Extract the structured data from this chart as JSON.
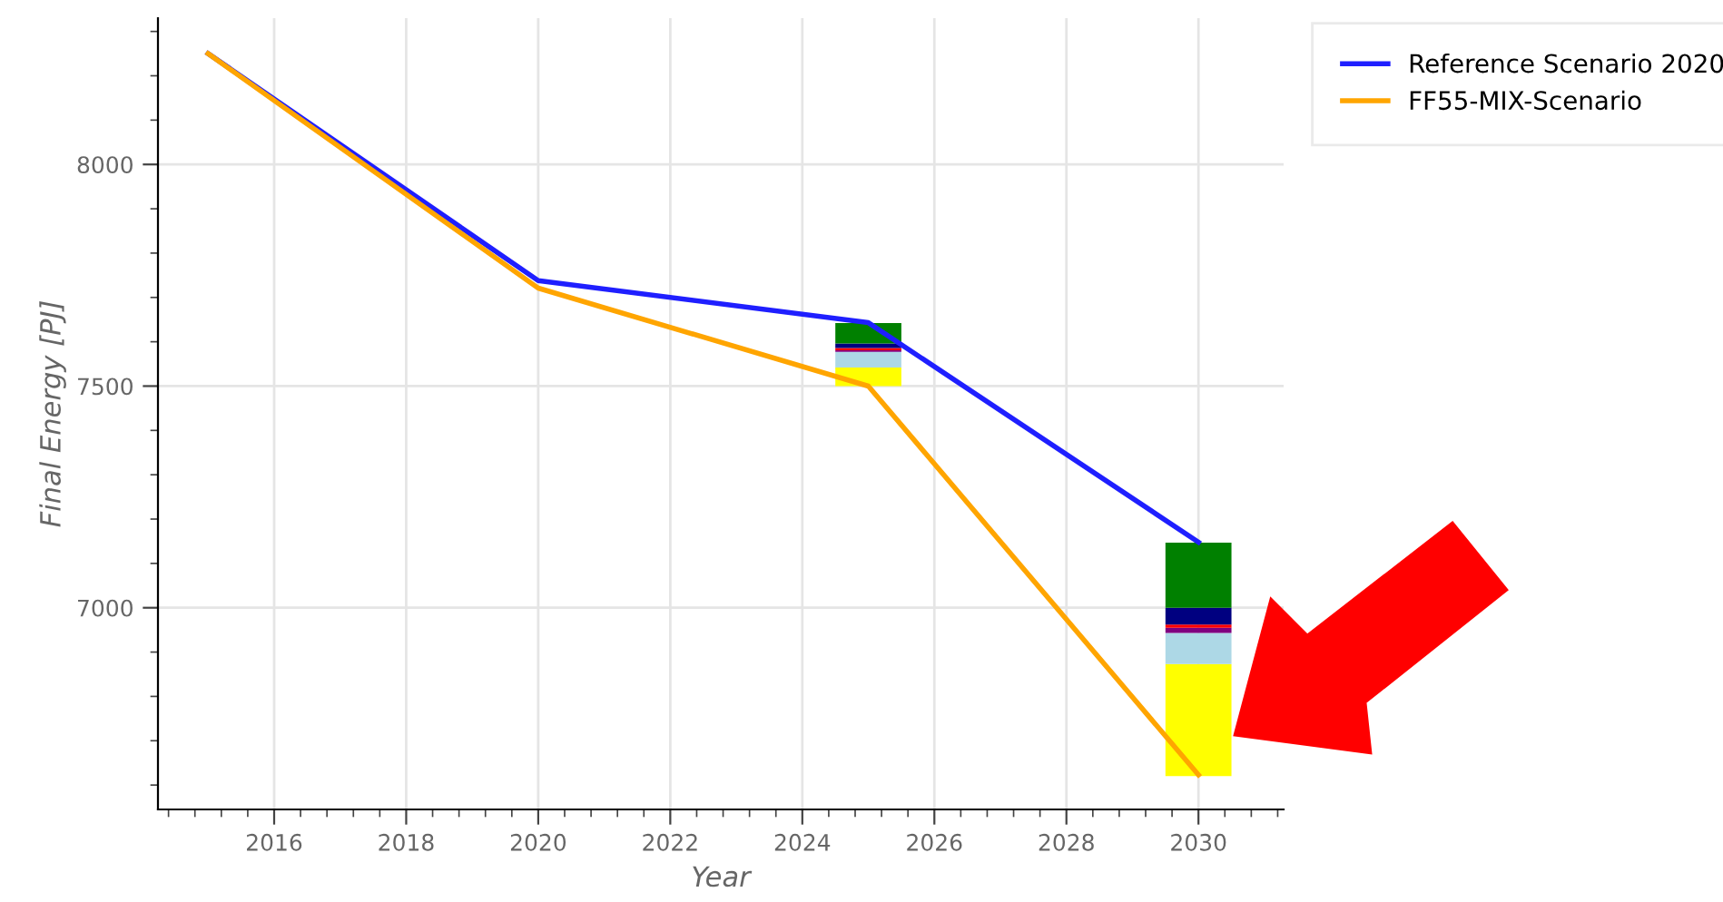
{
  "chart_data": {
    "type": "line",
    "xlabel": "Year",
    "ylabel": "Final Energy [PJ]",
    "xlim": [
      2014.24,
      2031.29
    ],
    "ylim": [
      6545,
      8330
    ],
    "xticks": [
      2016,
      2018,
      2020,
      2022,
      2024,
      2026,
      2028,
      2030
    ],
    "yticks": [
      7000,
      7500,
      8000
    ],
    "grid": true,
    "legend": "top right",
    "series": [
      {
        "type": "bar",
        "color": "#ffff00",
        "x": [
          2025,
          2030
        ],
        "base": [
          7500,
          6620
        ],
        "values": [
          42,
          253
        ]
      },
      {
        "type": "bar",
        "color": "#add8e6",
        "x": [
          2025,
          2030
        ],
        "base": [
          7542,
          6873
        ],
        "values": [
          35,
          70
        ]
      },
      {
        "type": "bar",
        "color": "#800080",
        "x": [
          2025,
          2030
        ],
        "base": [
          7577,
          6943
        ],
        "values": [
          4,
          12
        ]
      },
      {
        "type": "bar",
        "color": "#ff0000",
        "x": [
          2025,
          2030
        ],
        "base": [
          7581,
          6955
        ],
        "values": [
          5,
          7
        ]
      },
      {
        "type": "bar",
        "color": "#000080",
        "x": [
          2025,
          2030
        ],
        "base": [
          7586,
          6962
        ],
        "values": [
          10,
          38
        ]
      },
      {
        "type": "bar",
        "color": "#008000",
        "x": [
          2025,
          2030
        ],
        "base": [
          7596,
          7000
        ],
        "values": [
          46,
          147
        ]
      },
      {
        "name": "Reference Scenario 2020",
        "color": "#1f1fff",
        "x": [
          2015,
          2020,
          2025,
          2030
        ],
        "values": [
          8250,
          7738,
          7643,
          7148
        ]
      },
      {
        "name": "FF55-MIX-Scenario",
        "color": "#ffa500",
        "x": [
          2015,
          2020,
          2025,
          2030
        ],
        "values": [
          8250,
          7721,
          7500,
          6623
        ]
      }
    ]
  }
}
